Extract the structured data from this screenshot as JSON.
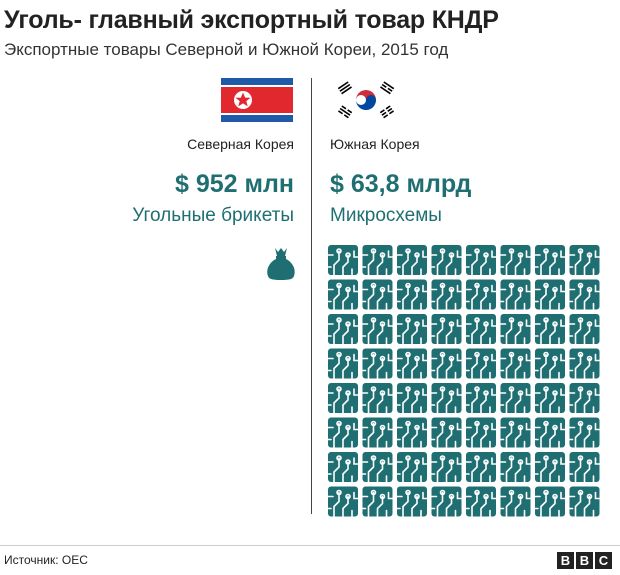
{
  "header": {
    "title": "Уголь- главный экспортный товар КНДР",
    "subtitle": "Экспортные товары Северной и Южной Кореи, 2015 год"
  },
  "chart_data": {
    "type": "pictogram",
    "title": "Уголь- главный экспортный товар КНДР",
    "subtitle": "Экспортные товары Северной и Южной Кореи, 2015 год",
    "series": [
      {
        "name": "Северная Корея",
        "value_label": "$ 952 млн",
        "product": "Угольные брикеты",
        "icon": "coal-bag-icon",
        "icon_count": 1
      },
      {
        "name": "Южная Корея",
        "value_label": "$ 63,8 млрд",
        "product": "Микросхемы",
        "icon": "microchip-icon",
        "icon_count": 64
      }
    ],
    "colors": {
      "accent": "#1f6f72"
    }
  },
  "footer": {
    "source": "Источник: OEC",
    "brand_letters": [
      "B",
      "B",
      "C"
    ]
  }
}
